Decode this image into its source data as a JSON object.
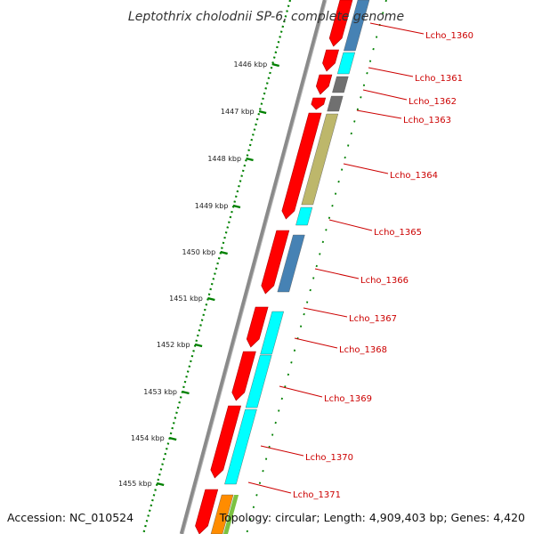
{
  "title": "Leptothrix cholodnii SP-6, complete genome",
  "footer": {
    "accession": "Accession: NC_010524",
    "summary": "Topology: circular; Length: 4,909,403 bp; Genes: 4,420"
  },
  "scale_ticks": [
    {
      "label": "1446 kbp"
    },
    {
      "label": "1447 kbp"
    },
    {
      "label": "1448 kbp"
    },
    {
      "label": "1449 kbp"
    },
    {
      "label": "1450 kbp"
    },
    {
      "label": "1451 kbp"
    },
    {
      "label": "1452 kbp"
    },
    {
      "label": "1453 kbp"
    },
    {
      "label": "1454 kbp"
    },
    {
      "label": "1455 kbp"
    }
  ],
  "gene_labels": [
    {
      "label": "Lcho_1360"
    },
    {
      "label": "Lcho_1361"
    },
    {
      "label": "Lcho_1362"
    },
    {
      "label": "Lcho_1363"
    },
    {
      "label": "Lcho_1364"
    },
    {
      "label": "Lcho_1365"
    },
    {
      "label": "Lcho_1366"
    },
    {
      "label": "Lcho_1367"
    },
    {
      "label": "Lcho_1368"
    },
    {
      "label": "Lcho_1369"
    },
    {
      "label": "Lcho_1370"
    },
    {
      "label": "Lcho_1371"
    }
  ],
  "colors": {
    "backbone": "#8a8a8a",
    "cds": "#ff0000",
    "cyan": "#00ffff",
    "steelblue": "#4682b4",
    "gray": "#707070",
    "khaki": "#bdb76b",
    "orange": "#ff8c00",
    "lime": "#7cc242",
    "tick_green": "#008000",
    "label_red": "#cc0000"
  }
}
